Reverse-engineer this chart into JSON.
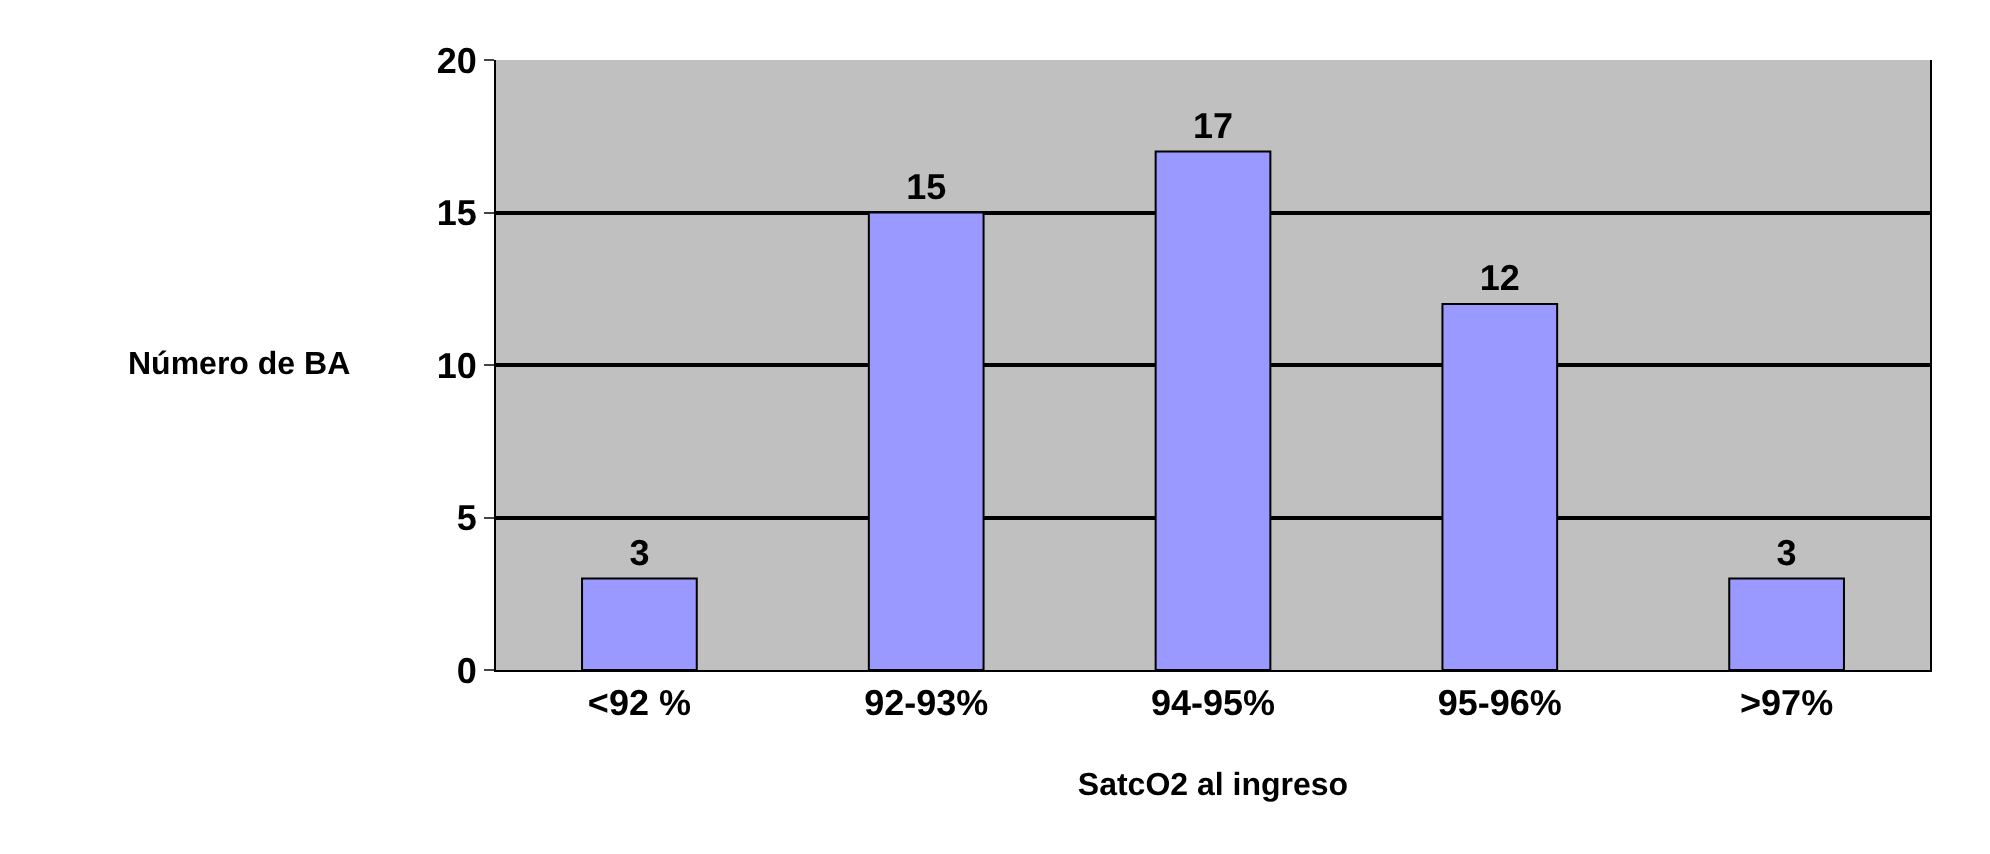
{
  "chart_data": {
    "type": "bar",
    "xlabel": "SatcO2 al ingreso",
    "ylabel": "Número de BA",
    "categories": [
      "<92 %",
      "92-93%",
      "94-95%",
      "95-96%",
      ">97%"
    ],
    "values": [
      3,
      15,
      17,
      12,
      3
    ],
    "color": "#9999ff",
    "ylim": [
      0,
      20
    ],
    "yticks": [
      0,
      5,
      10,
      15,
      20
    ],
    "grid": "y",
    "data_labels": true,
    "legend": false
  }
}
